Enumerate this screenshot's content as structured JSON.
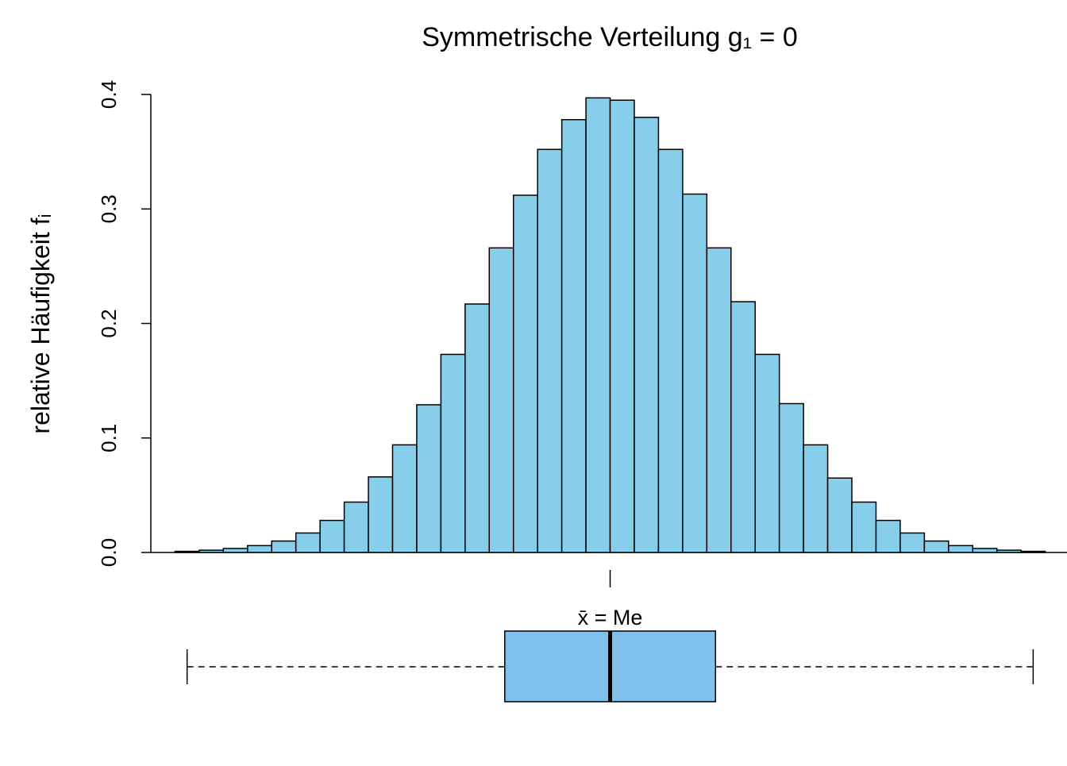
{
  "chart_data": [
    {
      "type": "histogram",
      "title": "Symmetrische Verteilung g₁ = 0",
      "y_label": "relative Häufigkeit fᵢ",
      "bins": [
        -18,
        -17,
        -16,
        -15,
        -14,
        -13,
        -12,
        -11,
        -10,
        -9,
        -8,
        -7,
        -6,
        -5,
        -4,
        -3,
        -2,
        -1,
        0,
        1,
        2,
        3,
        4,
        5,
        6,
        7,
        8,
        9,
        10,
        11,
        12,
        13,
        14,
        15,
        16,
        17,
        18
      ],
      "values": [
        0.001,
        0.002,
        0.0035,
        0.006,
        0.01,
        0.017,
        0.028,
        0.044,
        0.066,
        0.094,
        0.129,
        0.173,
        0.217,
        0.266,
        0.312,
        0.352,
        0.378,
        0.397,
        0.395,
        0.38,
        0.352,
        0.313,
        0.266,
        0.219,
        0.173,
        0.13,
        0.094,
        0.065,
        0.044,
        0.028,
        0.017,
        0.01,
        0.006,
        0.0035,
        0.002,
        0.001
      ],
      "color": "#87ceeb",
      "xlim": [
        -19,
        18.9
      ],
      "ylim": [
        0,
        0.4
      ],
      "yticks": [
        {
          "value": 0,
          "label": "0.0"
        },
        0.1,
        0.2,
        0.3,
        0.4
      ]
    },
    {
      "type": "boxplot",
      "color": "#80c0ec",
      "xlim": [
        -19,
        18.9
      ],
      "whisker_low": -17.5,
      "q1": -4.36,
      "median": 0,
      "q3": 4.36,
      "whisker_high": 17.5,
      "annotation": {
        "text": "x̄ = Me",
        "x": 0
      }
    }
  ]
}
